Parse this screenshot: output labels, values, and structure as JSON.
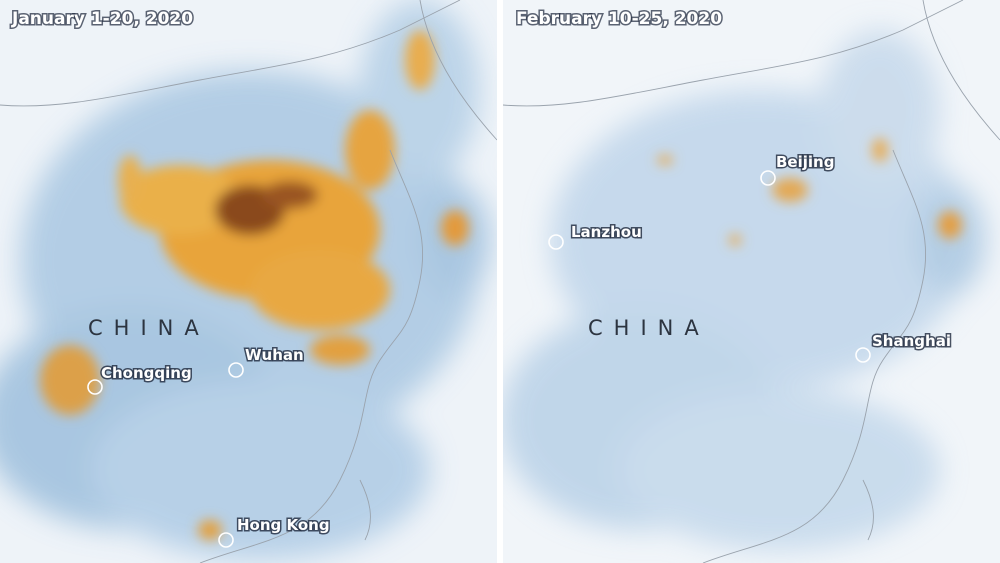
{
  "panels": [
    {
      "title": "January 1-20, 2020",
      "country_label": "CHINA",
      "cities": [
        {
          "name": "Chongqing"
        },
        {
          "name": "Wuhan"
        },
        {
          "name": "Hong Kong"
        }
      ]
    },
    {
      "title": "February 10-25, 2020",
      "country_label": "CHINA",
      "cities": [
        {
          "name": "Lanzhou"
        },
        {
          "name": "Beijing"
        },
        {
          "name": "Shanghai"
        }
      ]
    }
  ]
}
